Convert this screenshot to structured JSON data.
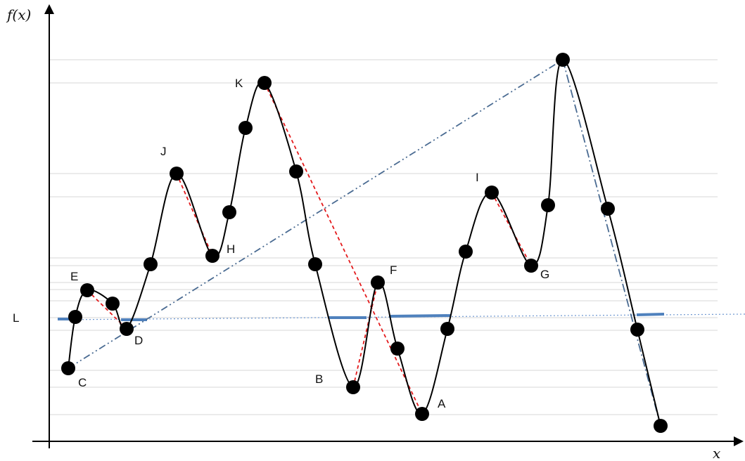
{
  "labels": {
    "y_axis": "f(x)",
    "x_axis": "x",
    "level": "L"
  },
  "points": [
    {
      "label": "A"
    },
    {
      "label": "B"
    },
    {
      "label": "C"
    },
    {
      "label": "D"
    },
    {
      "label": "E"
    },
    {
      "label": "F"
    },
    {
      "label": "G"
    },
    {
      "label": "H"
    },
    {
      "label": "I"
    },
    {
      "label": "J"
    },
    {
      "label": "K"
    }
  ],
  "colors": {
    "curve": "#000000",
    "red_dashed": "#e41a1c",
    "blue_dashdot": "#4a6b92",
    "blue_segment": "#4f81bd",
    "blue_dotted": "#6f98d1",
    "grid": "#d7d7d7"
  }
}
